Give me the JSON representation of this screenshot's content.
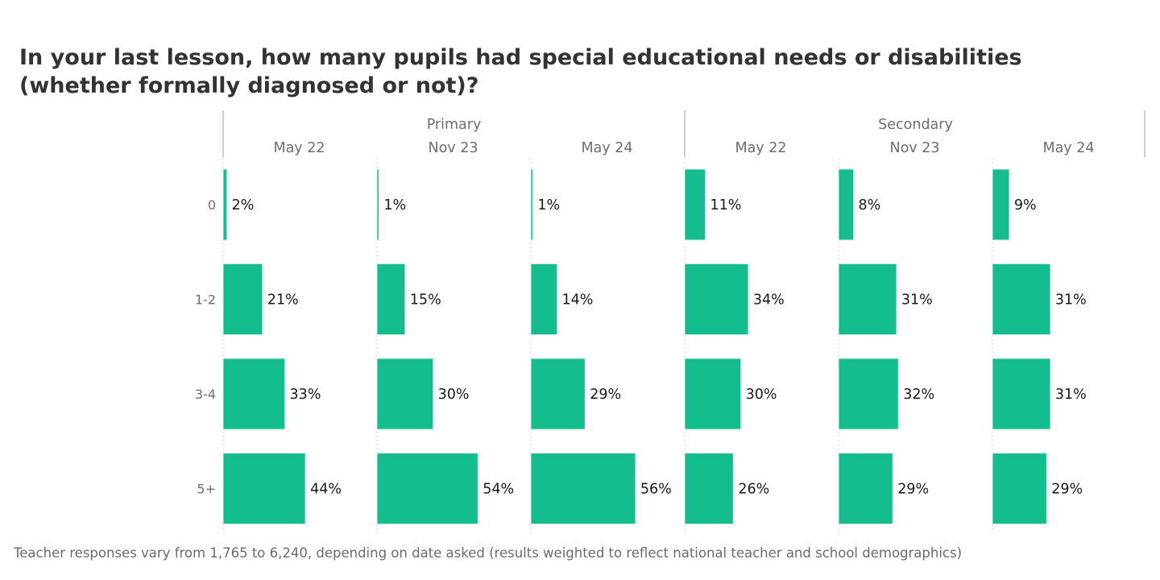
{
  "chart_data": {
    "type": "bar",
    "orientation": "horizontal",
    "title": "In your last lesson, how many pupils had special educational needs or disabilities (whether formally diagnosed or not)?",
    "footnote": "Teacher responses vary from 1,765 to 6,240, depending on date asked (results weighted to reflect national teacher and school demographics)",
    "categories": [
      "0",
      "1-2",
      "3-4",
      "5+"
    ],
    "groups": [
      {
        "name": "Primary",
        "panels": [
          {
            "name": "May 22",
            "values": [
              2,
              21,
              33,
              44
            ],
            "labels": [
              "2%",
              "21%",
              "33%",
              "44%"
            ]
          },
          {
            "name": "Nov 23",
            "values": [
              1,
              15,
              30,
              54
            ],
            "labels": [
              "1%",
              "15%",
              "30%",
              "54%"
            ]
          },
          {
            "name": "May 24",
            "values": [
              1,
              14,
              29,
              56
            ],
            "labels": [
              "1%",
              "14%",
              "29%",
              "56%"
            ]
          }
        ]
      },
      {
        "name": "Secondary",
        "panels": [
          {
            "name": "May 22",
            "values": [
              11,
              34,
              30,
              26
            ],
            "labels": [
              "11%",
              "34%",
              "30%",
              "26%"
            ]
          },
          {
            "name": "Nov 23",
            "values": [
              8,
              31,
              32,
              29
            ],
            "labels": [
              "8%",
              "31%",
              "32%",
              "29%"
            ]
          },
          {
            "name": "May 24",
            "values": [
              9,
              31,
              31,
              29
            ],
            "labels": [
              "9%",
              "31%",
              "31%",
              "29%"
            ]
          }
        ]
      }
    ],
    "xlim": [
      0,
      82
    ],
    "units": "%",
    "color": "#14bd8e",
    "grid": false,
    "legend": "none"
  }
}
